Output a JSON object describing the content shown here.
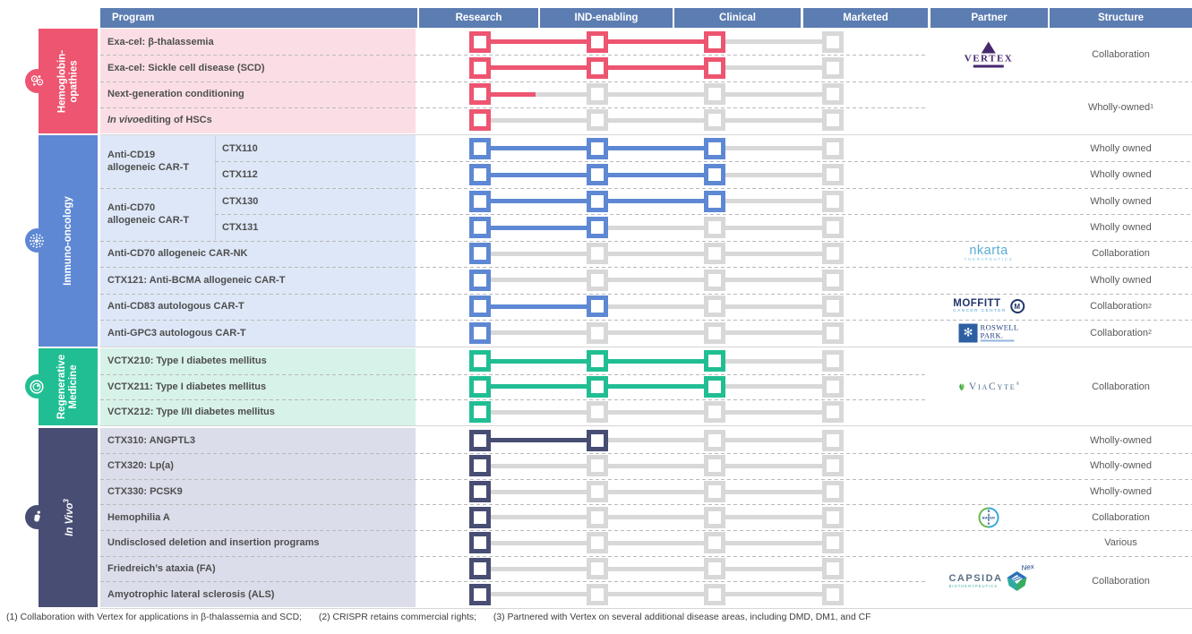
{
  "header": {
    "columns": [
      "Program",
      "Research",
      "IND-enabling",
      "Clinical",
      "Marketed",
      "Partner",
      "Structure"
    ]
  },
  "colors": {
    "header_bg": "#5C7DB1",
    "stage_gray": "#D8D8D8",
    "divider": "#B9B9B9",
    "program_text": "#4E4E4E",
    "structure_text": "#595959"
  },
  "chart_data": {
    "type": "table",
    "title": "",
    "stages": [
      "Research",
      "IND-enabling",
      "Clinical",
      "Marketed"
    ],
    "sections": [
      {
        "name": "Hemoglobinopathies",
        "label_lines": [
          "Hemoglobin-",
          "opathies"
        ],
        "label_italic": false,
        "label_sup": "",
        "icon": "cells-icon",
        "accent": "#ED5570",
        "tint": "#FBDEE5",
        "groups": [],
        "rows": [
          {
            "program": "Exa-cel: β-thalassemia",
            "italic_lead": "",
            "sub": false,
            "milestones": 3,
            "partial": 0
          },
          {
            "program": "Exa-cel: Sickle cell disease (SCD)",
            "italic_lead": "",
            "sub": false,
            "milestones": 3,
            "partial": 0
          },
          {
            "program": "Next-generation conditioning",
            "italic_lead": "",
            "sub": false,
            "milestones": 1,
            "partial": 0.47
          },
          {
            "program": " editing of HSCs",
            "italic_lead": "In vivo",
            "sub": false,
            "milestones": 1,
            "partial": 0
          }
        ],
        "annotations": [
          {
            "row_start": 0,
            "row_end": 1,
            "partner": "vertex-logo",
            "structure": "Collaboration",
            "sup": ""
          },
          {
            "row_start": 2,
            "row_end": 3,
            "partner": "",
            "structure": "Wholly-owned",
            "sup": "1"
          }
        ]
      },
      {
        "name": "Immuno-oncology",
        "label_lines": [
          "Immuno-oncology"
        ],
        "label_italic": false,
        "label_sup": "",
        "icon": "virus-icon",
        "accent": "#5E88D4",
        "tint": "#DDE7F7",
        "groups": [
          {
            "label_lines": [
              "Anti-CD19",
              "allogeneic CAR-T"
            ],
            "row_start": 0,
            "row_end": 1
          },
          {
            "label_lines": [
              "Anti-CD70",
              "allogeneic CAR-T"
            ],
            "row_start": 2,
            "row_end": 3
          }
        ],
        "rows": [
          {
            "program": "CTX110",
            "italic_lead": "",
            "sub": true,
            "milestones": 3,
            "partial": 0
          },
          {
            "program": "CTX112",
            "italic_lead": "",
            "sub": true,
            "milestones": 3,
            "partial": 0
          },
          {
            "program": "CTX130",
            "italic_lead": "",
            "sub": true,
            "milestones": 3,
            "partial": 0
          },
          {
            "program": "CTX131",
            "italic_lead": "",
            "sub": true,
            "milestones": 2,
            "partial": 0
          },
          {
            "program": "Anti-CD70 allogeneic CAR-NK",
            "italic_lead": "",
            "sub": false,
            "milestones": 1,
            "partial": 0
          },
          {
            "program": "CTX121: Anti-BCMA allogeneic CAR-T",
            "italic_lead": "",
            "sub": false,
            "milestones": 1,
            "partial": 0
          },
          {
            "program": "Anti-CD83 autologous CAR-T",
            "italic_lead": "",
            "sub": false,
            "milestones": 2,
            "partial": 0
          },
          {
            "program": "Anti-GPC3 autologous CAR-T",
            "italic_lead": "",
            "sub": false,
            "milestones": 1,
            "partial": 0
          }
        ],
        "annotations": [
          {
            "row_start": 0,
            "row_end": 0,
            "partner": "",
            "structure": "Wholly owned",
            "sup": ""
          },
          {
            "row_start": 1,
            "row_end": 1,
            "partner": "",
            "structure": "Wholly owned",
            "sup": ""
          },
          {
            "row_start": 2,
            "row_end": 2,
            "partner": "",
            "structure": "Wholly owned",
            "sup": ""
          },
          {
            "row_start": 3,
            "row_end": 3,
            "partner": "",
            "structure": "Wholly owned",
            "sup": ""
          },
          {
            "row_start": 4,
            "row_end": 4,
            "partner": "nkarta-logo",
            "structure": "Collaboration",
            "sup": ""
          },
          {
            "row_start": 5,
            "row_end": 5,
            "partner": "",
            "structure": "Wholly owned",
            "sup": ""
          },
          {
            "row_start": 6,
            "row_end": 6,
            "partner": "moffitt-logo",
            "structure": "Collaboration",
            "sup": "2"
          },
          {
            "row_start": 7,
            "row_end": 7,
            "partner": "roswell-logo",
            "structure": "Collaboration",
            "sup": "2"
          }
        ]
      },
      {
        "name": "Regenerative Medicine",
        "label_lines": [
          "Regenerative",
          "Medicine"
        ],
        "label_italic": false,
        "label_sup": "",
        "icon": "rings-icon",
        "accent": "#21BE93",
        "tint": "#D7F2E9",
        "groups": [],
        "rows": [
          {
            "program": "VCTX210: Type I diabetes mellitus",
            "italic_lead": "",
            "sub": false,
            "milestones": 3,
            "partial": 0
          },
          {
            "program": "VCTX211: Type I diabetes mellitus",
            "italic_lead": "",
            "sub": false,
            "milestones": 3,
            "partial": 0
          },
          {
            "program": "VCTX212: Type I/II diabetes mellitus",
            "italic_lead": "",
            "sub": false,
            "milestones": 1,
            "partial": 0
          }
        ],
        "annotations": [
          {
            "row_start": 0,
            "row_end": 2,
            "partner": "viacyte-logo",
            "structure": "Collaboration",
            "sup": ""
          }
        ]
      },
      {
        "name": "In Vivo",
        "label_lines": [
          "In Vivo"
        ],
        "label_italic": true,
        "label_sup": "3",
        "icon": "person-icon",
        "accent": "#484D73",
        "tint": "#DBDDEA",
        "groups": [],
        "rows": [
          {
            "program": "CTX310: ANGPTL3",
            "italic_lead": "",
            "sub": false,
            "milestones": 2,
            "partial": 0
          },
          {
            "program": "CTX320: Lp(a)",
            "italic_lead": "",
            "sub": false,
            "milestones": 1,
            "partial": 0
          },
          {
            "program": "CTX330: PCSK9",
            "italic_lead": "",
            "sub": false,
            "milestones": 1,
            "partial": 0
          },
          {
            "program": "Hemophilia A",
            "italic_lead": "",
            "sub": false,
            "milestones": 1,
            "partial": 0
          },
          {
            "program": "Undisclosed deletion and insertion programs",
            "italic_lead": "",
            "sub": false,
            "milestones": 1,
            "partial": 0
          },
          {
            "program": "Friedreich’s ataxia (FA)",
            "italic_lead": "",
            "sub": false,
            "milestones": 1,
            "partial": 0
          },
          {
            "program": "Amyotrophic lateral sclerosis (ALS)",
            "italic_lead": "",
            "sub": false,
            "milestones": 1,
            "partial": 0
          }
        ],
        "annotations": [
          {
            "row_start": 0,
            "row_end": 0,
            "partner": "",
            "structure": "Wholly-owned",
            "sup": ""
          },
          {
            "row_start": 1,
            "row_end": 1,
            "partner": "",
            "structure": "Wholly-owned",
            "sup": ""
          },
          {
            "row_start": 2,
            "row_end": 2,
            "partner": "",
            "structure": "Wholly-owned",
            "sup": ""
          },
          {
            "row_start": 3,
            "row_end": 3,
            "partner": "bayer-logo",
            "structure": "Collaboration",
            "sup": ""
          },
          {
            "row_start": 4,
            "row_end": 4,
            "partner": "",
            "structure": "Various",
            "sup": ""
          },
          {
            "row_start": 5,
            "row_end": 6,
            "partner": "capsida-logo",
            "structure": "Collaboration",
            "sup": ""
          }
        ]
      }
    ]
  },
  "logos": {
    "vertex": {
      "text": "VERTEX"
    },
    "nkarta": {
      "text": "nkarta",
      "sub": "THERAPEUTICS"
    },
    "moffitt": {
      "text": "MOFFITT",
      "sub": "CANCER CENTER",
      "mark": "M"
    },
    "roswell": {
      "line1": "ROSWELL",
      "line2": "PARK.",
      "mark": "✻"
    },
    "viacyte": {
      "text": "ViaCyte",
      "sup": "®"
    },
    "bayer": {
      "text": "BAYER"
    },
    "capsida": {
      "text": "CAPSIDA",
      "sub": "BIOTHERAPEUTICS",
      "script": "Nex"
    }
  },
  "footnote": {
    "notes": [
      "(1) Collaboration with Vertex for applications in β-thalassemia and SCD;",
      "(2) CRISPR retains commercial rights;",
      "(3) Partnered with Vertex on several additional disease areas, including DMD, DM1, and CF"
    ]
  }
}
